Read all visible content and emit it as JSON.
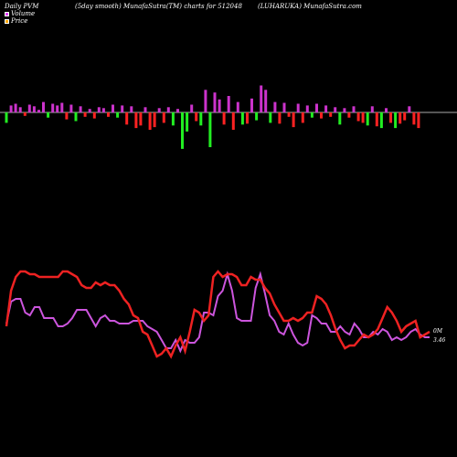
{
  "header": {
    "left": "Daily PVM",
    "center": "(5day smooth) MunafaSutra(TM) charts for 512048",
    "right": "(LUHARUKA) MunafaSutra.com"
  },
  "legend": {
    "volume": "Volume",
    "price": "Price",
    "volume_color": "#e040fb",
    "price_color": "#ffa500"
  },
  "colors": {
    "up": "#cc33cc",
    "down": "#ff2222",
    "green": "#22ee22",
    "volume_line": "#cc55dd",
    "price_line": "#ee2222",
    "baseline": "#aaaaaa"
  },
  "chart_data": [
    {
      "type": "bar",
      "description_series": "volume change",
      "x": [
        1,
        2,
        3,
        4,
        5,
        6,
        7,
        8,
        9,
        10,
        11,
        12,
        13,
        14,
        15,
        16,
        17,
        18,
        19,
        20,
        21,
        22,
        23,
        24,
        25,
        26,
        27,
        28,
        29,
        30,
        31,
        32,
        33,
        34,
        35,
        36,
        37,
        38,
        39,
        40,
        41,
        42,
        43,
        44,
        45,
        46,
        47,
        48,
        49,
        50,
        51,
        52,
        53,
        54,
        55,
        56,
        57,
        58,
        59,
        60,
        61,
        62,
        63,
        64,
        65,
        66,
        67,
        68,
        69,
        70,
        71,
        72,
        73,
        74,
        75,
        76,
        77,
        78,
        79,
        80,
        81,
        82,
        83,
        84,
        85,
        86,
        87,
        88,
        89,
        90,
        91
      ],
      "values": [
        -1.2,
        0.8,
        1.0,
        0.6,
        -0.4,
        0.9,
        0.7,
        0.3,
        1.2,
        -0.6,
        1.0,
        0.8,
        1.1,
        -0.8,
        0.9,
        -1.0,
        0.7,
        -0.5,
        0.4,
        -0.7,
        0.6,
        0.5,
        -0.5,
        0.9,
        -0.6,
        0.8,
        -1.4,
        0.7,
        -1.8,
        -1.5,
        0.6,
        -2.0,
        -1.7,
        0.5,
        -1.2,
        0.6,
        -1.5,
        0.4,
        -4.2,
        -2.2,
        0.9,
        -1.0,
        -1.5,
        2.6,
        -4.0,
        2.3,
        1.5,
        -1.4,
        1.9,
        -2.0,
        1.2,
        -1.4,
        -1.3,
        1.6,
        -0.9,
        3.1,
        2.6,
        -1.2,
        1.2,
        -1.3,
        1.1,
        -0.5,
        -1.7,
        1.0,
        -1.2,
        0.8,
        -0.6,
        1.0,
        -0.7,
        0.8,
        -0.5,
        0.6,
        -1.4,
        0.5,
        -0.6,
        0.7,
        -1.0,
        -1.2,
        -1.5,
        0.7,
        -1.6,
        -1.8,
        0.5,
        -1.2,
        -1.8,
        -1.3,
        -0.9,
        0.7,
        -1.4,
        -1.8,
        0.0
      ]
    },
    {
      "type": "line",
      "series": [
        {
          "name": "Volume",
          "values": [
            41,
            49,
            50,
            50,
            45,
            44,
            47,
            47,
            43,
            43,
            43,
            40,
            40,
            41,
            43,
            46,
            46,
            46,
            43,
            40,
            43,
            44,
            42,
            42,
            41,
            41,
            41,
            42,
            42,
            42,
            40,
            39,
            38,
            35,
            32,
            32,
            35,
            31,
            35,
            34,
            34,
            36,
            45,
            45,
            44,
            51,
            53,
            59,
            53,
            43,
            42,
            42,
            42,
            54,
            59,
            52,
            44,
            42,
            38,
            37,
            41,
            37,
            34,
            33,
            34,
            44,
            43,
            41,
            41,
            38,
            38,
            40,
            38,
            37,
            41,
            39,
            36,
            36,
            38,
            37,
            39,
            38,
            35,
            36,
            35,
            36,
            38,
            39,
            37,
            36,
            36
          ]
        },
        {
          "name": "Price",
          "values": [
            40,
            53,
            58,
            60,
            60,
            59,
            59,
            58,
            58,
            58,
            58,
            58,
            60,
            60,
            59,
            58,
            55,
            54,
            54,
            56,
            55,
            56,
            55,
            55,
            53,
            50,
            48,
            44,
            43,
            38,
            37,
            33,
            29,
            30,
            32,
            29,
            33,
            36,
            31,
            38,
            46,
            45,
            42,
            44,
            58,
            60,
            58,
            59,
            59,
            58,
            55,
            55,
            58,
            57,
            57,
            54,
            52,
            48,
            45,
            42,
            42,
            43,
            42,
            43,
            45,
            45,
            51,
            50,
            48,
            44,
            39,
            35,
            32,
            33,
            33,
            35,
            37,
            36,
            37,
            39,
            43,
            47,
            45,
            42,
            38,
            40,
            41,
            42,
            36,
            37,
            38
          ]
        }
      ],
      "side_labels": [
        "0M",
        "3.46"
      ]
    }
  ]
}
